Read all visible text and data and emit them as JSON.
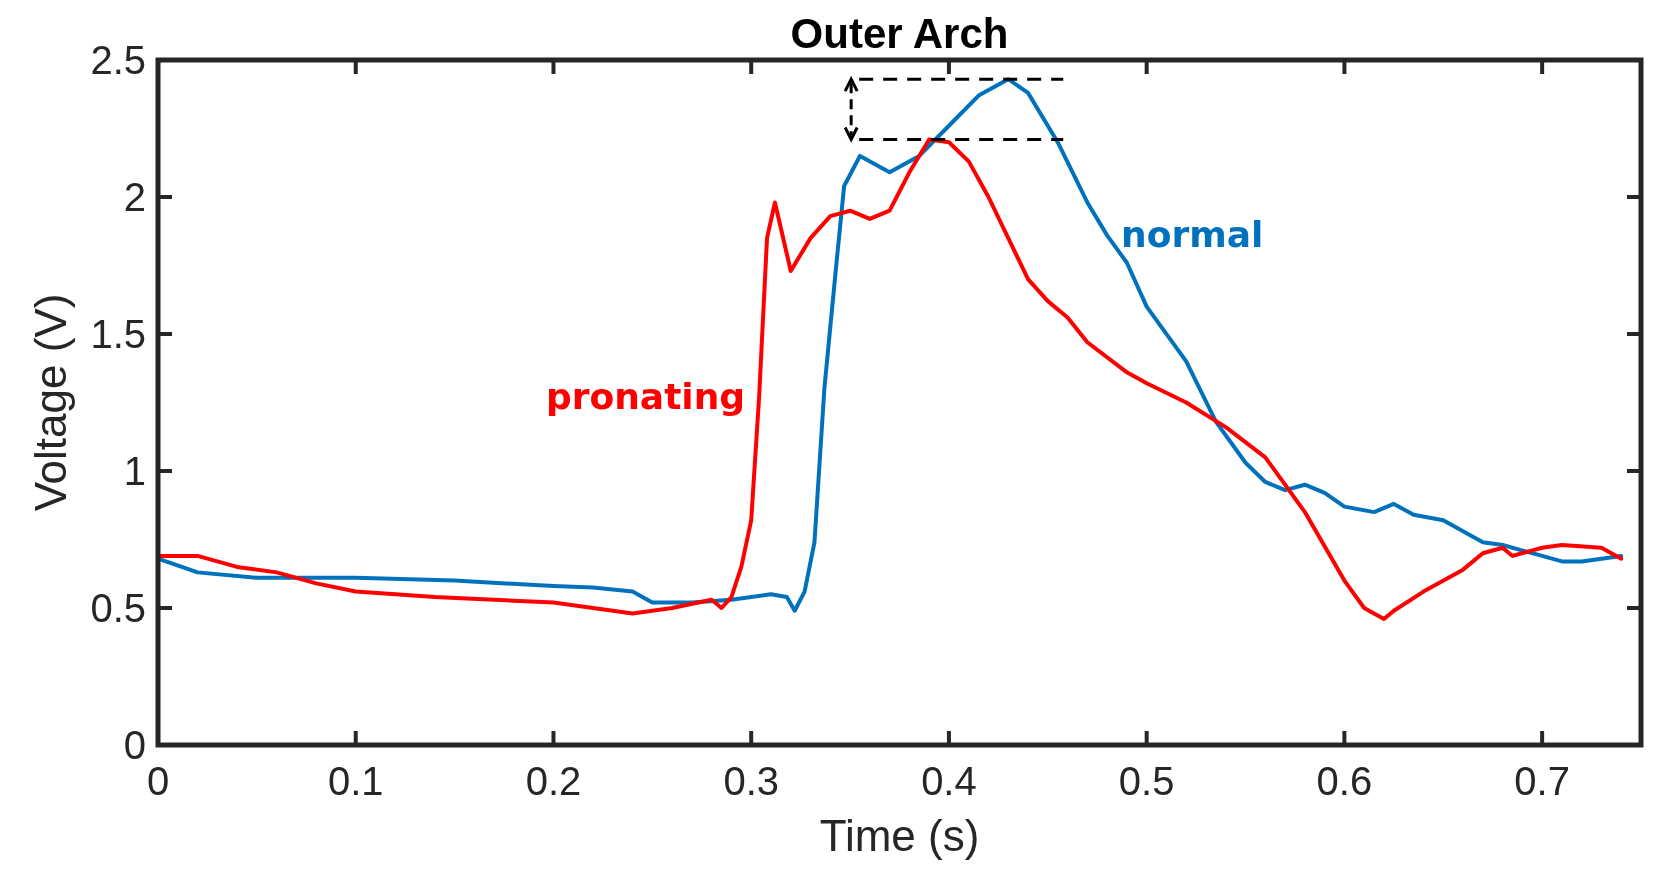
{
  "chart_data": {
    "type": "line",
    "title": "Outer Arch",
    "xlabel": "Time (s)",
    "ylabel": "Voltage (V)",
    "xlim": [
      0,
      0.75
    ],
    "xticks": [
      0,
      0.1,
      0.2,
      0.3,
      0.4,
      0.5,
      0.6,
      0.7
    ],
    "ylim": [
      0,
      2.5
    ],
    "yticks": [
      0,
      0.5,
      1,
      1.5,
      2,
      2.5
    ],
    "grid": false,
    "line_style": "solid",
    "marker": "none",
    "series": [
      {
        "name": "normal",
        "color": "#0072bd",
        "x": [
          0,
          0.02,
          0.05,
          0.1,
          0.15,
          0.2,
          0.22,
          0.24,
          0.25,
          0.27,
          0.29,
          0.31,
          0.318,
          0.322,
          0.327,
          0.332,
          0.337,
          0.343,
          0.347,
          0.355,
          0.37,
          0.385,
          0.4,
          0.415,
          0.43,
          0.44,
          0.455,
          0.47,
          0.48,
          0.49,
          0.5,
          0.52,
          0.535,
          0.55,
          0.56,
          0.57,
          0.58,
          0.59,
          0.6,
          0.615,
          0.625,
          0.635,
          0.65,
          0.67,
          0.68,
          0.7,
          0.71,
          0.72,
          0.74
        ],
        "values": [
          0.68,
          0.63,
          0.61,
          0.61,
          0.6,
          0.58,
          0.575,
          0.56,
          0.52,
          0.52,
          0.53,
          0.55,
          0.54,
          0.49,
          0.56,
          0.74,
          1.3,
          1.75,
          2.04,
          2.15,
          2.09,
          2.15,
          2.26,
          2.37,
          2.43,
          2.38,
          2.2,
          1.98,
          1.86,
          1.76,
          1.6,
          1.4,
          1.18,
          1.03,
          0.96,
          0.93,
          0.95,
          0.92,
          0.87,
          0.85,
          0.88,
          0.84,
          0.82,
          0.74,
          0.73,
          0.69,
          0.67,
          0.67,
          0.69
        ]
      },
      {
        "name": "pronating",
        "color": "#ff0000",
        "x": [
          0,
          0.02,
          0.04,
          0.06,
          0.08,
          0.1,
          0.14,
          0.2,
          0.22,
          0.24,
          0.26,
          0.28,
          0.285,
          0.29,
          0.295,
          0.3,
          0.304,
          0.308,
          0.312,
          0.32,
          0.33,
          0.34,
          0.35,
          0.36,
          0.37,
          0.38,
          0.39,
          0.4,
          0.41,
          0.42,
          0.43,
          0.44,
          0.45,
          0.46,
          0.47,
          0.49,
          0.5,
          0.52,
          0.54,
          0.56,
          0.57,
          0.58,
          0.6,
          0.61,
          0.62,
          0.625,
          0.64,
          0.66,
          0.67,
          0.68,
          0.685,
          0.7,
          0.71,
          0.73,
          0.74
        ],
        "values": [
          0.69,
          0.69,
          0.65,
          0.63,
          0.59,
          0.56,
          0.54,
          0.52,
          0.5,
          0.48,
          0.5,
          0.53,
          0.5,
          0.54,
          0.65,
          0.82,
          1.27,
          1.85,
          1.98,
          1.73,
          1.85,
          1.93,
          1.95,
          1.92,
          1.95,
          2.09,
          2.21,
          2.2,
          2.13,
          2.0,
          1.85,
          1.7,
          1.62,
          1.56,
          1.47,
          1.36,
          1.32,
          1.25,
          1.16,
          1.05,
          0.95,
          0.85,
          0.6,
          0.5,
          0.46,
          0.49,
          0.56,
          0.64,
          0.7,
          0.72,
          0.69,
          0.72,
          0.73,
          0.72,
          0.68
        ]
      }
    ]
  }
}
